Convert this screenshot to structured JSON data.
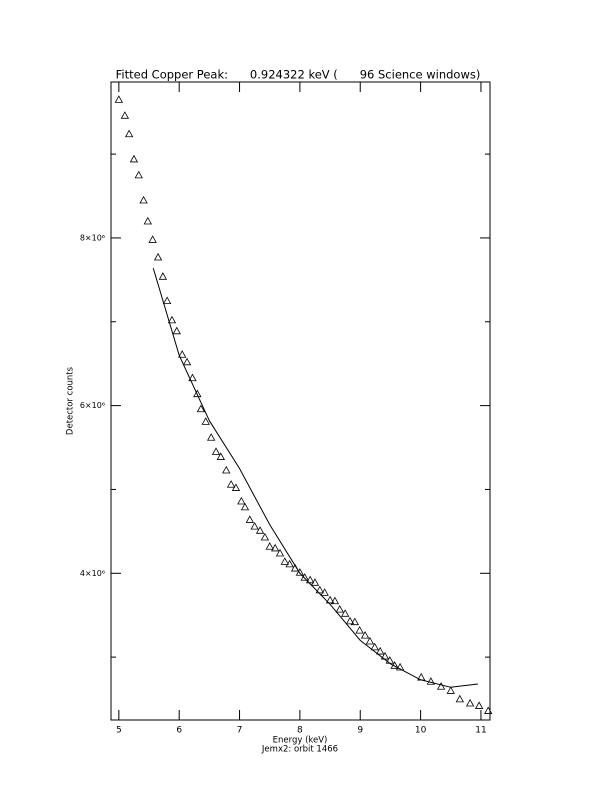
{
  "chart_data": {
    "type": "scatter",
    "title": "Fitted Copper Peak:      0.924322 keV (      96 Science windows)",
    "xlabel": "Energy (keV)",
    "ylabel": "Detector counts",
    "footer": "Jemx2: orbit 1466",
    "xlim": [
      4.87,
      11.15
    ],
    "ylim": [
      2250000,
      9860000
    ],
    "xticks": [
      5,
      6,
      7,
      8,
      9,
      10,
      11
    ],
    "yticks": [
      {
        "value": 4000000,
        "label": "4×10⁶"
      },
      {
        "value": 6000000,
        "label": "6×10⁶"
      },
      {
        "value": 8000000,
        "label": "8×10⁶"
      }
    ],
    "y_minor_ticks": [
      3000000,
      5000000,
      7000000,
      9000000
    ],
    "color": "#000000",
    "series": [
      {
        "kind": "scatter",
        "marker": "triangle",
        "x": [
          5.0,
          5.1,
          5.17,
          5.25,
          5.33,
          5.41,
          5.48,
          5.56,
          5.65,
          5.73,
          5.8,
          5.88,
          5.96,
          6.05,
          6.13,
          6.22,
          6.3,
          6.36,
          6.44,
          6.53,
          6.61,
          6.69,
          6.78,
          6.86,
          6.94,
          7.03,
          7.09,
          7.17,
          7.25,
          7.34,
          7.42,
          7.5,
          7.59,
          7.67,
          7.75,
          7.83,
          7.92,
          8.0,
          8.08,
          8.17,
          8.25,
          8.33,
          8.41,
          8.5,
          8.58,
          8.66,
          8.75,
          8.83,
          8.91,
          8.99,
          9.08,
          9.16,
          9.24,
          9.33,
          9.41,
          9.49,
          9.57,
          9.66,
          10.01,
          10.17,
          10.34,
          10.5,
          10.65,
          10.82,
          10.97,
          11.12
        ],
        "values": [
          9650000,
          9460000,
          9240000,
          8940000,
          8750000,
          8450000,
          8200000,
          7980000,
          7770000,
          7540000,
          7250000,
          7020000,
          6890000,
          6610000,
          6520000,
          6330000,
          6140000,
          5960000,
          5810000,
          5620000,
          5450000,
          5390000,
          5230000,
          5060000,
          5020000,
          4860000,
          4790000,
          4640000,
          4560000,
          4510000,
          4430000,
          4320000,
          4300000,
          4240000,
          4140000,
          4110000,
          4060000,
          4010000,
          3950000,
          3920000,
          3890000,
          3800000,
          3770000,
          3680000,
          3670000,
          3570000,
          3520000,
          3430000,
          3420000,
          3320000,
          3260000,
          3190000,
          3120000,
          3070000,
          3010000,
          2960000,
          2900000,
          2880000,
          2760000,
          2710000,
          2650000,
          2600000,
          2500000,
          2450000,
          2420000,
          2360000
        ]
      },
      {
        "kind": "line",
        "x": [
          5.57,
          6.0,
          6.5,
          7.0,
          7.5,
          8.0,
          8.5,
          9.0,
          9.5,
          10.0,
          10.5,
          10.95
        ],
        "values": [
          7640000,
          6600000,
          5820000,
          5250000,
          4580000,
          4000000,
          3630000,
          3200000,
          2920000,
          2730000,
          2640000,
          2680000
        ]
      }
    ]
  }
}
